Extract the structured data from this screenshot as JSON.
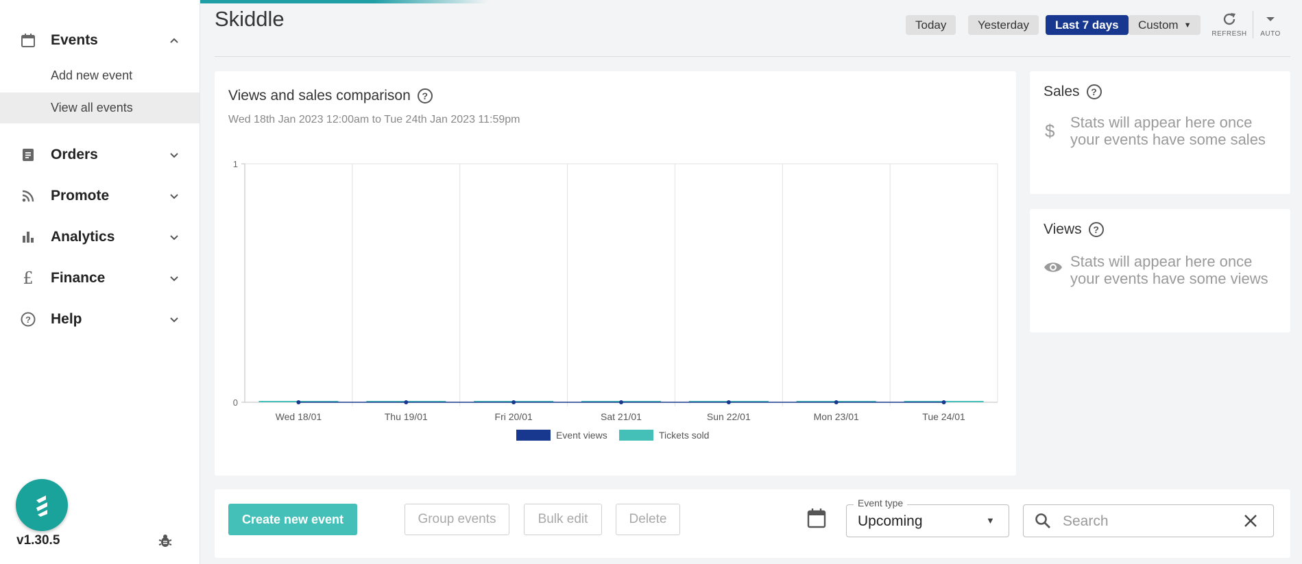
{
  "app": {
    "title": "Skiddle",
    "version": "v1.30.5"
  },
  "sidebar": {
    "items": [
      {
        "label": "Events",
        "icon": "calendar-icon",
        "expanded": true,
        "children": [
          {
            "label": "Add new event"
          },
          {
            "label": "View all events",
            "active": true
          }
        ]
      },
      {
        "label": "Orders",
        "icon": "document-icon"
      },
      {
        "label": "Promote",
        "icon": "rss-icon"
      },
      {
        "label": "Analytics",
        "icon": "bar-chart-icon"
      },
      {
        "label": "Finance",
        "icon": "pound-icon"
      },
      {
        "label": "Help",
        "icon": "help-icon"
      }
    ]
  },
  "header": {
    "ranges": [
      {
        "label": "Today"
      },
      {
        "label": "Yesterday"
      },
      {
        "label": "Last 7 days",
        "active": true
      },
      {
        "label": "Custom"
      }
    ],
    "refresh_label": "REFRESH",
    "auto_label": "AUTO"
  },
  "comparison": {
    "title": "Views and sales comparison",
    "subtitle": "Wed 18th Jan 2023 12:00am to Tue 24th Jan 2023 11:59pm"
  },
  "sales": {
    "title": "Sales",
    "empty_text": "Stats will appear here once your events have some sales"
  },
  "views": {
    "title": "Views",
    "empty_text": "Stats will appear here once your events have some views"
  },
  "toolbar": {
    "create_label": "Create new event",
    "group_label": "Group events",
    "bulk_label": "Bulk edit",
    "delete_label": "Delete",
    "event_type_label": "Event type",
    "event_type_value": "Upcoming",
    "search_placeholder": "Search"
  },
  "colors": {
    "accent": "#17388e",
    "teal": "#45c0b8",
    "brand": "#1aa39a"
  },
  "chart_data": {
    "type": "bar",
    "categories": [
      "Wed 18/01",
      "Thu 19/01",
      "Fri 20/01",
      "Sat 21/01",
      "Sun 22/01",
      "Mon 23/01",
      "Tue 24/01"
    ],
    "series": [
      {
        "name": "Event views",
        "values": [
          0,
          0,
          0,
          0,
          0,
          0,
          0
        ],
        "color": "#17388e"
      },
      {
        "name": "Tickets sold",
        "values": [
          0,
          0,
          0,
          0,
          0,
          0,
          0
        ],
        "color": "#45c0b8"
      }
    ],
    "y_ticks": [
      "0",
      "1"
    ],
    "ylim": [
      0,
      1
    ],
    "grid": true,
    "legend_position": "bottom"
  }
}
